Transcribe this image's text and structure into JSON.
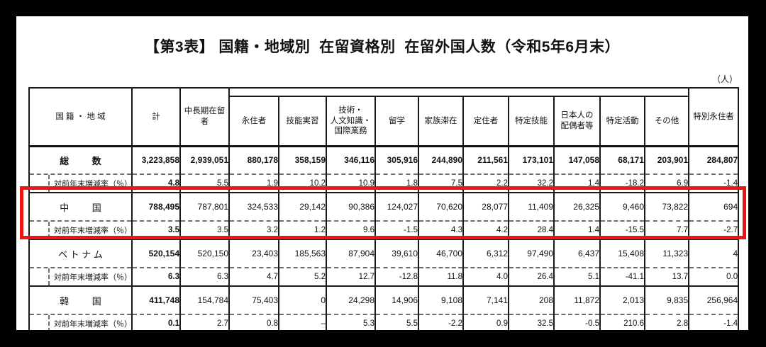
{
  "title": "【第3表】 国籍・地域別  在留資格別  在留外国人数（令和5年6月末）",
  "unit_label": "（人）",
  "colors": {
    "negative_value": "#f8322b",
    "highlight_box": "#ee1414"
  },
  "table": {
    "columns": [
      "国 籍 ・ 地 域",
      "計",
      "中長期在留者",
      "永住者",
      "技能実習",
      "技術・\n人文知識・\n国際業務",
      "留学",
      "家族滞在",
      "定住者",
      "特定技能",
      "日本人の\n配偶者等",
      "特定活動",
      "その他",
      "特別永住者"
    ],
    "rate_label": "対前年末増減率（％）",
    "rows": [
      {
        "name": "総         数",
        "total": true,
        "highlighted": false,
        "values": [
          "3,223,858",
          "2,939,051",
          "880,178",
          "358,159",
          "346,116",
          "305,916",
          "244,890",
          "211,561",
          "173,101",
          "147,058",
          "68,171",
          "203,901",
          "284,807"
        ],
        "rates": [
          "4.8",
          "5.5",
          "1.9",
          "10.2",
          "10.9",
          "1.8",
          "7.5",
          "2.2",
          "32.2",
          "1.4",
          "-18.2",
          "6.9",
          "-1.4"
        ]
      },
      {
        "name": "中         国",
        "total": false,
        "highlighted": true,
        "values": [
          "788,495",
          "787,801",
          "324,533",
          "29,142",
          "90,386",
          "124,027",
          "70,620",
          "28,077",
          "11,409",
          "26,325",
          "9,460",
          "73,822",
          "694"
        ],
        "rates": [
          "3.5",
          "3.5",
          "3.2",
          "1.2",
          "9.6",
          "-1.5",
          "4.3",
          "4.2",
          "28.4",
          "1.4",
          "-15.5",
          "7.7",
          "-2.7"
        ]
      },
      {
        "name": "ベ ト ナ ム",
        "total": false,
        "highlighted": false,
        "values": [
          "520,154",
          "520,150",
          "23,403",
          "185,563",
          "87,904",
          "39,610",
          "46,700",
          "6,312",
          "97,490",
          "6,437",
          "15,408",
          "11,323",
          "4"
        ],
        "rates": [
          "6.3",
          "6.3",
          "4.7",
          "5.2",
          "12.7",
          "-12.8",
          "11.8",
          "4.0",
          "26.4",
          "5.1",
          "-41.1",
          "13.7",
          "0.0"
        ]
      },
      {
        "name": "韓         国",
        "total": false,
        "highlighted": false,
        "values": [
          "411,748",
          "154,784",
          "75,403",
          "0",
          "24,298",
          "14,906",
          "9,108",
          "7,141",
          "208",
          "11,872",
          "2,013",
          "9,835",
          "256,964"
        ],
        "rates": [
          "0.1",
          "2.7",
          "0.8",
          "–",
          "5.3",
          "5.5",
          "-2.2",
          "0.9",
          "32.5",
          "-0.5",
          "210.6",
          "2.8",
          "-1.4"
        ]
      }
    ]
  }
}
